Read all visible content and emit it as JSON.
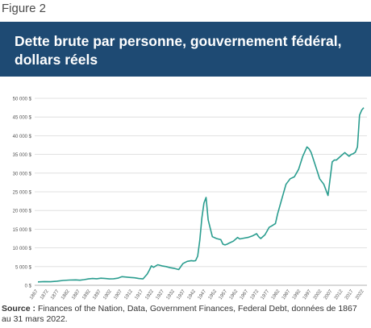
{
  "figure_label": "Figure 2",
  "title": "Dette brute par personne, gouvernement fédéral, dollars réels",
  "source": {
    "label": "Source :",
    "text": "Finances of the Nation, Data, Government Finances, Federal Debt, données de 1867 au 31 mars 2022."
  },
  "colors": {
    "banner": "#1e4a73",
    "line": "#2a9d8f",
    "grid": "#d9d9d9",
    "axis_text": "#555555"
  },
  "chart_data": {
    "type": "line",
    "title": "",
    "xlabel": "",
    "ylabel": "",
    "ylim": [
      0,
      50000
    ],
    "xlim": [
      1867,
      2022
    ],
    "grid": "horizontal",
    "legend": "none",
    "y_ticks": [
      "0 $",
      "5 000 $",
      "10 000 $",
      "15 000 $",
      "20 000 $",
      "25 000 $",
      "30 000 $",
      "35 000 $",
      "40 000 $",
      "45 000 $",
      "50 000 $"
    ],
    "x_ticks": [
      "1867",
      "1872",
      "1877",
      "1882",
      "1887",
      "1892",
      "1897",
      "1902",
      "1907",
      "1912",
      "1917",
      "1922",
      "1927",
      "1932",
      "1937",
      "1942",
      "1947",
      "1952",
      "1957",
      "1962",
      "1967",
      "1972",
      "1977",
      "1982",
      "1987",
      "1992",
      "1997",
      "2002",
      "2007",
      "2012",
      "2017",
      "2022"
    ],
    "series": [
      {
        "x": [
          1867,
          1870,
          1873,
          1876,
          1879,
          1882,
          1885,
          1887,
          1889,
          1891,
          1893,
          1895,
          1897,
          1899,
          1901,
          1903,
          1905,
          1907,
          1909,
          1911,
          1913,
          1915,
          1917,
          1919,
          1920,
          1921,
          1922,
          1924,
          1926,
          1928,
          1930,
          1932,
          1934,
          1936,
          1938,
          1940,
          1941,
          1942,
          1943,
          1944,
          1945,
          1946,
          1947,
          1948,
          1950,
          1952,
          1954,
          1955,
          1956,
          1957,
          1958,
          1960,
          1962,
          1963,
          1965,
          1967,
          1969,
          1971,
          1972,
          1973,
          1975,
          1977,
          1978,
          1980,
          1981,
          1983,
          1985,
          1987,
          1989,
          1991,
          1993,
          1995,
          1996,
          1997,
          1999,
          2001,
          2003,
          2005,
          2007,
          2008,
          2009,
          2011,
          2013,
          2014,
          2015,
          2016,
          2017,
          2018,
          2019,
          2020,
          2021,
          2022
        ],
        "y": [
          900,
          1000,
          950,
          1100,
          1300,
          1400,
          1450,
          1350,
          1500,
          1700,
          1800,
          1750,
          1900,
          1800,
          1700,
          1750,
          1900,
          2300,
          2200,
          2100,
          2000,
          1800,
          1700,
          3000,
          4000,
          5200,
          4800,
          5500,
          5200,
          5000,
          4700,
          4500,
          4200,
          5800,
          6400,
          6600,
          6500,
          6600,
          7800,
          12000,
          18000,
          22000,
          23500,
          17500,
          13000,
          12500,
          12200,
          11000,
          10800,
          11000,
          11300,
          11800,
          12800,
          12400,
          12600,
          12800,
          13200,
          13800,
          13000,
          12500,
          13500,
          15500,
          15800,
          16500,
          19000,
          23000,
          27000,
          28500,
          29000,
          31000,
          34500,
          37000,
          36500,
          35500,
          32000,
          28500,
          27000,
          24000,
          33000,
          33500,
          33500,
          34500,
          35500,
          35000,
          34500,
          35000,
          35200,
          35600,
          37000,
          45500,
          46800,
          47500
        ]
      }
    ]
  }
}
